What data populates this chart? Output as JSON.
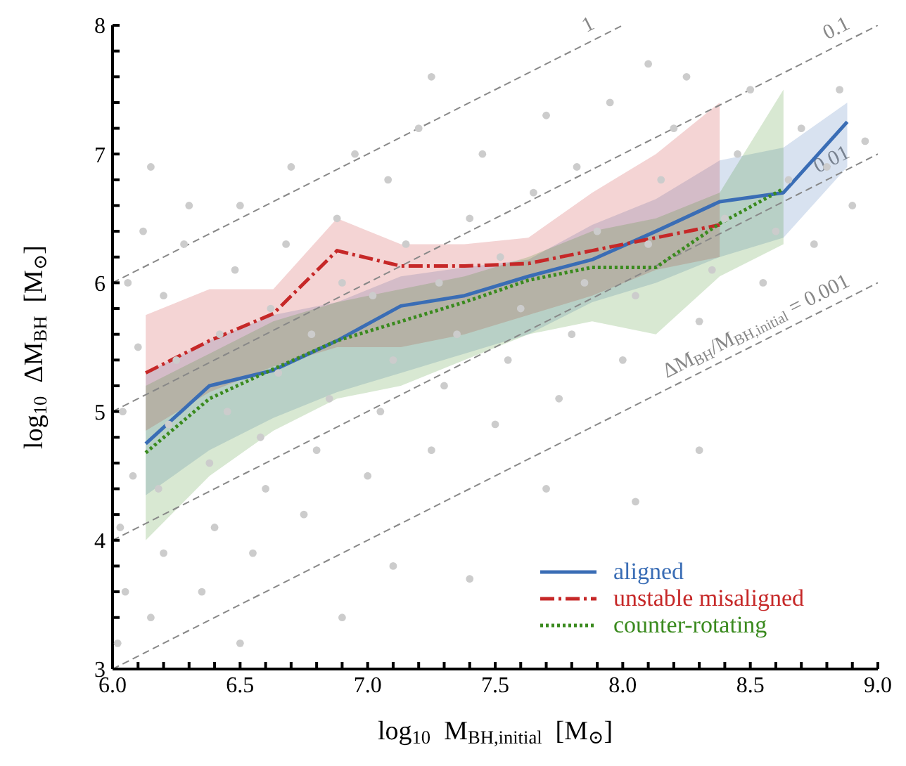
{
  "chart_data": {
    "type": "line",
    "xlabel": "log$_{10}$  M$_{BH,initial}$  [M$_{⊙}$]",
    "ylabel": "log$_{10}$  ΔM$_{BH}$  [M$_{⊙}$]",
    "xlim": [
      6,
      9
    ],
    "ylim": [
      3,
      8
    ],
    "xticks": [
      {
        "value": 6,
        "label": "6.0"
      },
      {
        "value": 6.1,
        "label": null
      },
      {
        "value": 6.2,
        "label": null
      },
      {
        "value": 6.3,
        "label": null
      },
      {
        "value": 6.4,
        "label": null
      },
      {
        "value": 6.5,
        "label": "6.5"
      },
      {
        "value": 6.6,
        "label": null
      },
      {
        "value": 6.7,
        "label": null
      },
      {
        "value": 6.8,
        "label": null
      },
      {
        "value": 6.9,
        "label": null
      },
      {
        "value": 7,
        "label": "7.0"
      },
      {
        "value": 7.1,
        "label": null
      },
      {
        "value": 7.2,
        "label": null
      },
      {
        "value": 7.3,
        "label": null
      },
      {
        "value": 7.4,
        "label": null
      },
      {
        "value": 7.5,
        "label": "7.5"
      },
      {
        "value": 7.6,
        "label": null
      },
      {
        "value": 7.7,
        "label": null
      },
      {
        "value": 7.8,
        "label": null
      },
      {
        "value": 7.9,
        "label": null
      },
      {
        "value": 8,
        "label": "8.0"
      },
      {
        "value": 8.1,
        "label": null
      },
      {
        "value": 8.2,
        "label": null
      },
      {
        "value": 8.3,
        "label": null
      },
      {
        "value": 8.4,
        "label": null
      },
      {
        "value": 8.5,
        "label": "8.5"
      },
      {
        "value": 8.6,
        "label": null
      },
      {
        "value": 8.7,
        "label": null
      },
      {
        "value": 8.8,
        "label": null
      },
      {
        "value": 8.9,
        "label": null
      },
      {
        "value": 9,
        "label": "9.0"
      }
    ],
    "yticks": [
      3,
      {
        "value": 3.2,
        "label": null
      },
      {
        "value": 3.4,
        "label": null
      },
      {
        "value": 3.6,
        "label": null
      },
      {
        "value": 3.8,
        "label": null
      },
      4,
      {
        "value": 4.2,
        "label": null
      },
      {
        "value": 4.4,
        "label": null
      },
      {
        "value": 4.6,
        "label": null
      },
      {
        "value": 4.8,
        "label": null
      },
      5,
      {
        "value": 5.2,
        "label": null
      },
      {
        "value": 5.4,
        "label": null
      },
      {
        "value": 5.6,
        "label": null
      },
      {
        "value": 5.8,
        "label": null
      },
      6,
      {
        "value": 6.2,
        "label": null
      },
      {
        "value": 6.4,
        "label": null
      },
      {
        "value": 6.6,
        "label": null
      },
      {
        "value": 6.8,
        "label": null
      },
      7,
      {
        "value": 7.2,
        "label": null
      },
      {
        "value": 7.4,
        "label": null
      },
      {
        "value": 7.6,
        "label": null
      },
      {
        "value": 7.8,
        "label": null
      },
      8
    ],
    "legend": "bottom right",
    "grid": false,
    "series": [
      {
        "type": "scatter",
        "color": "#cccccc",
        "marker": "circle",
        "x": [
          6.02,
          6.05,
          6.03,
          6.08,
          6.04,
          6.1,
          6.06,
          6.12,
          6.15,
          6.2,
          6.18,
          6.22,
          6.25,
          6.2,
          6.28,
          6.3,
          6.35,
          6.4,
          6.38,
          6.45,
          6.42,
          6.48,
          6.5,
          6.55,
          6.6,
          6.58,
          6.65,
          6.62,
          6.68,
          6.7,
          6.75,
          6.8,
          6.85,
          6.78,
          6.9,
          6.88,
          6.95,
          7.0,
          7.05,
          7.1,
          7.02,
          7.15,
          7.08,
          7.2,
          7.25,
          7.3,
          7.35,
          7.28,
          7.4,
          7.45,
          7.5,
          7.55,
          7.6,
          7.52,
          7.65,
          7.7,
          7.75,
          7.8,
          7.85,
          7.9,
          7.82,
          7.95,
          8.0,
          8.05,
          8.1,
          8.15,
          8.2,
          8.25,
          8.3,
          8.35,
          8.4,
          8.45,
          8.5,
          8.55,
          8.6,
          8.65,
          8.7,
          8.75,
          8.8,
          8.85,
          8.9,
          8.95,
          7.4,
          7.7,
          8.05,
          8.3,
          7.1,
          6.9,
          6.5,
          6.15,
          7.25,
          8.1
        ],
        "values": [
          3.2,
          3.6,
          4.1,
          4.5,
          5.0,
          5.5,
          6.0,
          6.4,
          3.4,
          3.9,
          4.4,
          4.9,
          5.4,
          5.9,
          6.3,
          6.6,
          3.6,
          4.1,
          4.6,
          5.0,
          5.6,
          6.1,
          6.6,
          3.9,
          4.4,
          4.8,
          5.3,
          5.8,
          6.3,
          6.9,
          4.2,
          4.7,
          5.1,
          5.6,
          6.0,
          6.5,
          7.0,
          4.5,
          5.0,
          5.4,
          5.9,
          6.3,
          6.8,
          7.2,
          4.7,
          5.2,
          5.6,
          6.0,
          6.5,
          7.0,
          4.9,
          5.4,
          5.8,
          6.2,
          6.7,
          7.3,
          5.1,
          5.6,
          6.0,
          6.4,
          6.9,
          7.4,
          5.4,
          5.9,
          6.3,
          6.8,
          7.2,
          7.6,
          5.7,
          6.1,
          6.5,
          7.0,
          7.5,
          6.0,
          6.4,
          6.8,
          7.2,
          6.3,
          6.9,
          7.5,
          6.6,
          7.1,
          3.7,
          4.4,
          4.3,
          4.7,
          3.8,
          3.4,
          3.2,
          6.9,
          7.6,
          7.7
        ]
      },
      {
        "name": "1",
        "type": "line",
        "color": "#888888",
        "line_style": "dashed",
        "x": [
          6,
          8
        ],
        "values": [
          6,
          8
        ]
      },
      {
        "name": "0.1",
        "type": "line",
        "color": "#888888",
        "line_style": "dashed",
        "x": [
          6,
          9
        ],
        "values": [
          5,
          8
        ]
      },
      {
        "name": "0.01",
        "type": "line",
        "color": "#888888",
        "line_style": "dashed",
        "x": [
          6,
          9
        ],
        "values": [
          4,
          7
        ]
      },
      {
        "name": "ΔM$_{BH}$/M$_{BH,initial}$ = 0.001",
        "type": "line",
        "color": "#888888",
        "line_style": "dashed",
        "x": [
          6,
          9
        ],
        "values": [
          3,
          6
        ]
      },
      {
        "name": "aligned",
        "color": "#3a6db5",
        "line_style": "solid",
        "x": [
          6.13,
          6.38,
          6.63,
          6.88,
          7.13,
          7.38,
          7.63,
          7.88,
          8.13,
          8.38,
          8.63,
          8.88
        ],
        "values": [
          4.75,
          5.2,
          5.32,
          5.55,
          5.82,
          5.9,
          6.05,
          6.18,
          6.4,
          6.63,
          6.7,
          7.25
        ],
        "lower": [
          4.35,
          4.7,
          4.95,
          5.15,
          5.3,
          5.45,
          5.6,
          5.85,
          6.0,
          6.2,
          6.35,
          6.9
        ],
        "upper": [
          5.3,
          5.55,
          5.75,
          5.85,
          6.05,
          6.12,
          6.18,
          6.45,
          6.65,
          6.95,
          7.05,
          7.4
        ]
      },
      {
        "name": "unstable misaligned",
        "color": "#c62828",
        "line_style": "dashdot",
        "x": [
          6.13,
          6.38,
          6.63,
          6.88,
          7.13,
          7.38,
          7.63,
          7.88,
          8.13,
          8.38
        ],
        "values": [
          5.3,
          5.55,
          5.76,
          6.25,
          6.13,
          6.13,
          6.15,
          6.25,
          6.35,
          6.45
        ],
        "lower": [
          4.85,
          5.15,
          5.35,
          5.5,
          5.5,
          5.6,
          5.75,
          5.9,
          6.1,
          6.2
        ],
        "upper": [
          5.75,
          5.95,
          5.95,
          6.5,
          6.3,
          6.3,
          6.35,
          6.7,
          7.0,
          7.4
        ]
      },
      {
        "name": "counter-rotating",
        "color": "#3a8a1e",
        "line_style": "dotted",
        "x": [
          6.13,
          6.38,
          6.63,
          6.88,
          7.13,
          7.38,
          7.63,
          7.88,
          8.13,
          8.38,
          8.63
        ],
        "values": [
          4.68,
          5.1,
          5.33,
          5.55,
          5.7,
          5.85,
          6.02,
          6.12,
          6.12,
          6.46,
          6.73
        ],
        "lower": [
          4.0,
          4.5,
          4.85,
          5.1,
          5.2,
          5.4,
          5.6,
          5.7,
          5.6,
          6.05,
          6.3
        ],
        "upper": [
          5.2,
          5.45,
          5.7,
          5.85,
          5.95,
          6.05,
          6.2,
          6.4,
          6.5,
          6.7,
          7.5
        ]
      }
    ]
  }
}
